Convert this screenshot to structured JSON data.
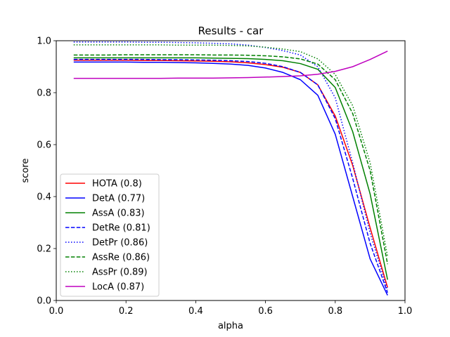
{
  "chart_data": {
    "type": "line",
    "title": "Results - car",
    "xlabel": "alpha",
    "ylabel": "score",
    "xlim": [
      0.0,
      1.0
    ],
    "ylim": [
      0.0,
      1.0
    ],
    "xticks": [
      "0.0",
      "0.2",
      "0.4",
      "0.6",
      "0.8",
      "1.0"
    ],
    "yticks": [
      "0.0",
      "0.2",
      "0.4",
      "0.6",
      "0.8",
      "1.0"
    ],
    "grid": false,
    "legend_position": "lower-left",
    "x": [
      0.05,
      0.1,
      0.15,
      0.2,
      0.25,
      0.3,
      0.35,
      0.4,
      0.45,
      0.5,
      0.55,
      0.6,
      0.65,
      0.7,
      0.75,
      0.8,
      0.85,
      0.9,
      0.95
    ],
    "series": [
      {
        "name": "HOTA (0.8)",
        "color": "#ff0000",
        "style": "solid",
        "values": [
          0.925,
          0.925,
          0.925,
          0.925,
          0.924,
          0.924,
          0.923,
          0.922,
          0.921,
          0.919,
          0.915,
          0.908,
          0.898,
          0.878,
          0.83,
          0.71,
          0.52,
          0.28,
          0.05
        ]
      },
      {
        "name": "DetA (0.77)",
        "color": "#0000ff",
        "style": "solid",
        "values": [
          0.918,
          0.918,
          0.918,
          0.918,
          0.917,
          0.917,
          0.916,
          0.915,
          0.913,
          0.91,
          0.905,
          0.895,
          0.878,
          0.85,
          0.79,
          0.64,
          0.4,
          0.16,
          0.02
        ]
      },
      {
        "name": "AssA (0.83)",
        "color": "#008000",
        "style": "solid",
        "values": [
          0.934,
          0.934,
          0.934,
          0.934,
          0.934,
          0.934,
          0.934,
          0.934,
          0.933,
          0.932,
          0.931,
          0.928,
          0.923,
          0.912,
          0.89,
          0.82,
          0.65,
          0.41,
          0.08
        ]
      },
      {
        "name": "DetRe (0.81)",
        "color": "#0000ff",
        "style": "dashed",
        "values": [
          0.928,
          0.928,
          0.928,
          0.928,
          0.928,
          0.927,
          0.927,
          0.926,
          0.925,
          0.923,
          0.92,
          0.913,
          0.9,
          0.878,
          0.83,
          0.7,
          0.47,
          0.22,
          0.03
        ]
      },
      {
        "name": "DetPr (0.86)",
        "color": "#0000ff",
        "style": "dotted",
        "values": [
          0.995,
          0.995,
          0.995,
          0.995,
          0.994,
          0.994,
          0.993,
          0.992,
          0.99,
          0.988,
          0.983,
          0.974,
          0.962,
          0.945,
          0.9,
          0.78,
          0.53,
          0.26,
          0.04
        ]
      },
      {
        "name": "AssRe (0.86)",
        "color": "#008000",
        "style": "dashed",
        "values": [
          0.945,
          0.945,
          0.945,
          0.946,
          0.946,
          0.946,
          0.946,
          0.946,
          0.945,
          0.945,
          0.944,
          0.942,
          0.938,
          0.93,
          0.91,
          0.85,
          0.72,
          0.5,
          0.14
        ]
      },
      {
        "name": "AssPr (0.89)",
        "color": "#008000",
        "style": "dotted",
        "values": [
          0.984,
          0.984,
          0.984,
          0.984,
          0.984,
          0.984,
          0.983,
          0.983,
          0.983,
          0.982,
          0.98,
          0.975,
          0.968,
          0.958,
          0.93,
          0.87,
          0.75,
          0.53,
          0.17
        ]
      },
      {
        "name": "LocA (0.87)",
        "color": "#bf00bf",
        "style": "solid",
        "values": [
          0.855,
          0.855,
          0.855,
          0.855,
          0.855,
          0.855,
          0.856,
          0.856,
          0.856,
          0.857,
          0.858,
          0.86,
          0.862,
          0.865,
          0.871,
          0.882,
          0.9,
          0.928,
          0.96
        ]
      }
    ]
  }
}
